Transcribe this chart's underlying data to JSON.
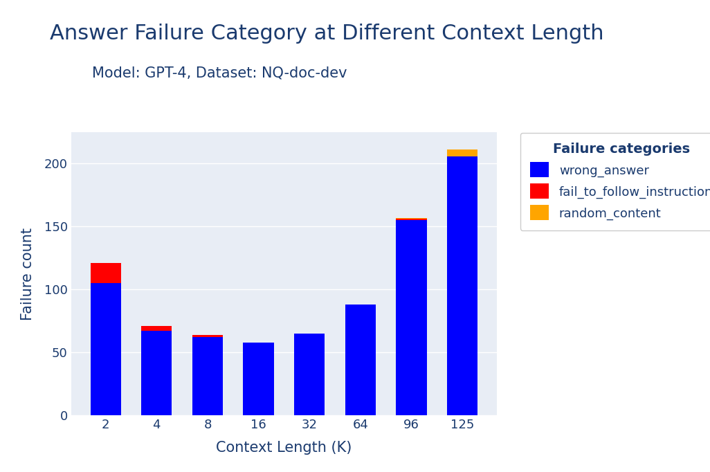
{
  "title": "Answer Failure Category at Different Context Length",
  "subtitle": "Model: GPT-4, Dataset: NQ-doc-dev",
  "xlabel": "Context Length (K)",
  "ylabel": "Failure count",
  "categories": [
    "2",
    "4",
    "8",
    "16",
    "32",
    "64",
    "96",
    "125"
  ],
  "wrong_answer": [
    105,
    67,
    62,
    58,
    65,
    88,
    155,
    206
  ],
  "fail_to_follow_instruction": [
    16,
    4,
    2,
    0,
    0,
    0,
    1,
    0
  ],
  "random_content": [
    0,
    0,
    0,
    0,
    0,
    0,
    1,
    5
  ],
  "colors": {
    "wrong_answer": "#0000ff",
    "fail_to_follow_instruction": "#ff0000",
    "random_content": "#ffa500"
  },
  "legend_title": "Failure categories",
  "background_color": "#e8edf5",
  "figure_background": "#ffffff",
  "title_color": "#1a3a6e",
  "subtitle_color": "#1a3a6e",
  "axis_label_color": "#1a3a6e",
  "tick_color": "#1a3a6e",
  "ylim": [
    0,
    225
  ],
  "yticks": [
    0,
    50,
    100,
    150,
    200
  ],
  "title_fontsize": 22,
  "subtitle_fontsize": 15,
  "axis_label_fontsize": 15,
  "tick_fontsize": 13,
  "legend_fontsize": 13,
  "legend_title_fontsize": 14
}
